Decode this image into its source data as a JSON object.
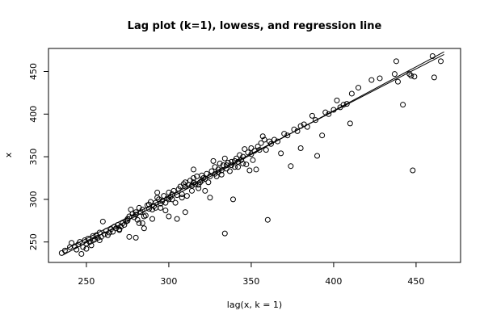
{
  "chart_data": {
    "type": "scatter",
    "title": "Lag plot (k=1), lowess, and regression line",
    "xlabel": "lag(x, k = 1)",
    "ylabel": "x",
    "xlim": [
      227,
      477
    ],
    "ylim": [
      226,
      477
    ],
    "xticks": [
      250,
      300,
      350,
      400,
      450
    ],
    "yticks": [
      250,
      300,
      350,
      400,
      450
    ],
    "grid": false,
    "legend": "none",
    "point_color": "#000000",
    "points": [
      [
        235,
        237
      ],
      [
        237,
        240
      ],
      [
        240,
        244
      ],
      [
        241,
        249
      ],
      [
        243,
        245
      ],
      [
        244,
        241
      ],
      [
        245,
        247
      ],
      [
        246,
        250
      ],
      [
        247,
        236
      ],
      [
        248,
        244
      ],
      [
        249,
        252
      ],
      [
        250,
        248
      ],
      [
        250,
        242
      ],
      [
        251,
        254
      ],
      [
        252,
        250
      ],
      [
        253,
        246
      ],
      [
        254,
        252
      ],
      [
        254,
        257
      ],
      [
        255,
        253
      ],
      [
        256,
        258
      ],
      [
        257,
        255
      ],
      [
        258,
        252
      ],
      [
        258,
        261
      ],
      [
        259,
        256
      ],
      [
        260,
        274
      ],
      [
        261,
        259
      ],
      [
        262,
        263
      ],
      [
        263,
        258
      ],
      [
        264,
        261
      ],
      [
        265,
        265
      ],
      [
        266,
        262
      ],
      [
        267,
        268
      ],
      [
        268,
        266
      ],
      [
        269,
        270
      ],
      [
        270,
        265
      ],
      [
        271,
        268
      ],
      [
        272,
        272
      ],
      [
        273,
        270
      ],
      [
        274,
        274
      ],
      [
        275,
        277
      ],
      [
        276,
        280
      ],
      [
        276,
        256
      ],
      [
        277,
        288
      ],
      [
        278,
        283
      ],
      [
        279,
        279
      ],
      [
        280,
        285
      ],
      [
        280,
        255
      ],
      [
        281,
        276
      ],
      [
        282,
        290
      ],
      [
        283,
        285
      ],
      [
        284,
        288
      ],
      [
        284,
        272
      ],
      [
        285,
        266
      ],
      [
        286,
        281
      ],
      [
        287,
        293
      ],
      [
        288,
        289
      ],
      [
        289,
        297
      ],
      [
        290,
        277
      ],
      [
        291,
        292
      ],
      [
        292,
        296
      ],
      [
        293,
        302
      ],
      [
        293,
        308
      ],
      [
        294,
        300
      ],
      [
        295,
        295
      ],
      [
        296,
        298
      ],
      [
        297,
        304
      ],
      [
        298,
        287
      ],
      [
        299,
        301
      ],
      [
        300,
        280
      ],
      [
        300,
        308
      ],
      [
        301,
        303
      ],
      [
        302,
        306
      ],
      [
        303,
        310
      ],
      [
        304,
        296
      ],
      [
        305,
        277
      ],
      [
        306,
        312
      ],
      [
        307,
        315
      ],
      [
        308,
        302
      ],
      [
        309,
        318
      ],
      [
        310,
        320
      ],
      [
        310,
        285
      ],
      [
        311,
        304
      ],
      [
        312,
        317
      ],
      [
        313,
        322
      ],
      [
        314,
        310
      ],
      [
        315,
        325
      ],
      [
        315,
        335
      ],
      [
        316,
        318
      ],
      [
        317,
        327
      ],
      [
        318,
        313
      ],
      [
        319,
        320
      ],
      [
        320,
        328
      ],
      [
        321,
        325
      ],
      [
        322,
        310
      ],
      [
        323,
        330
      ],
      [
        324,
        320
      ],
      [
        325,
        302
      ],
      [
        326,
        333
      ],
      [
        327,
        345
      ],
      [
        328,
        338
      ],
      [
        329,
        327
      ],
      [
        330,
        335
      ],
      [
        331,
        342
      ],
      [
        332,
        329
      ],
      [
        333,
        340
      ],
      [
        334,
        260
      ],
      [
        334,
        348
      ],
      [
        335,
        336
      ],
      [
        336,
        343
      ],
      [
        337,
        333
      ],
      [
        338,
        340
      ],
      [
        339,
        300
      ],
      [
        340,
        345
      ],
      [
        341,
        348
      ],
      [
        342,
        338
      ],
      [
        343,
        352
      ],
      [
        344,
        346
      ],
      [
        345,
        350
      ],
      [
        346,
        359
      ],
      [
        347,
        341
      ],
      [
        348,
        355
      ],
      [
        349,
        334
      ],
      [
        350,
        360
      ],
      [
        351,
        346
      ],
      [
        352,
        357
      ],
      [
        353,
        335
      ],
      [
        354,
        362
      ],
      [
        355,
        358
      ],
      [
        356,
        366
      ],
      [
        357,
        374
      ],
      [
        358,
        370
      ],
      [
        359,
        358
      ],
      [
        360,
        276
      ],
      [
        361,
        368
      ],
      [
        362,
        365
      ],
      [
        364,
        370
      ],
      [
        366,
        368
      ],
      [
        368,
        354
      ],
      [
        370,
        377
      ],
      [
        372,
        375
      ],
      [
        374,
        339
      ],
      [
        376,
        382
      ],
      [
        378,
        380
      ],
      [
        380,
        360
      ],
      [
        380,
        386
      ],
      [
        382,
        388
      ],
      [
        384,
        385
      ],
      [
        387,
        398
      ],
      [
        389,
        393
      ],
      [
        390,
        351
      ],
      [
        393,
        375
      ],
      [
        395,
        402
      ],
      [
        397,
        400
      ],
      [
        400,
        405
      ],
      [
        402,
        416
      ],
      [
        404,
        408
      ],
      [
        406,
        411
      ],
      [
        408,
        412
      ],
      [
        410,
        389
      ],
      [
        411,
        424
      ],
      [
        415,
        431
      ],
      [
        423,
        440
      ],
      [
        428,
        442
      ],
      [
        437,
        447
      ],
      [
        438,
        462
      ],
      [
        439,
        438
      ],
      [
        442,
        411
      ],
      [
        446,
        447
      ],
      [
        447,
        445
      ],
      [
        448,
        334
      ],
      [
        449,
        444
      ],
      [
        460,
        468
      ],
      [
        461,
        443
      ],
      [
        465,
        462
      ],
      [
        270,
        264
      ],
      [
        275,
        275
      ],
      [
        280,
        282
      ],
      [
        285,
        280
      ],
      [
        290,
        288
      ],
      [
        295,
        290
      ],
      [
        300,
        300
      ],
      [
        305,
        305
      ],
      [
        310,
        315
      ],
      [
        315,
        320
      ],
      [
        320,
        322
      ],
      [
        325,
        327
      ],
      [
        330,
        332
      ],
      [
        335,
        340
      ],
      [
        340,
        338
      ],
      [
        345,
        342
      ],
      [
        350,
        353
      ],
      [
        282,
        272
      ],
      [
        288,
        294
      ],
      [
        292,
        290
      ],
      [
        298,
        296
      ],
      [
        302,
        300
      ],
      [
        308,
        306
      ],
      [
        314,
        316
      ],
      [
        318,
        317
      ],
      [
        322,
        324
      ],
      [
        328,
        330
      ],
      [
        332,
        334
      ],
      [
        338,
        344
      ],
      [
        342,
        344
      ]
    ],
    "lines": [
      {
        "kind": "regression",
        "x": [
          236,
          467
        ],
        "y": [
          240,
          470
        ]
      },
      {
        "kind": "lowess",
        "x": [
          236,
          467
        ],
        "y": [
          235,
          473
        ]
      }
    ]
  }
}
